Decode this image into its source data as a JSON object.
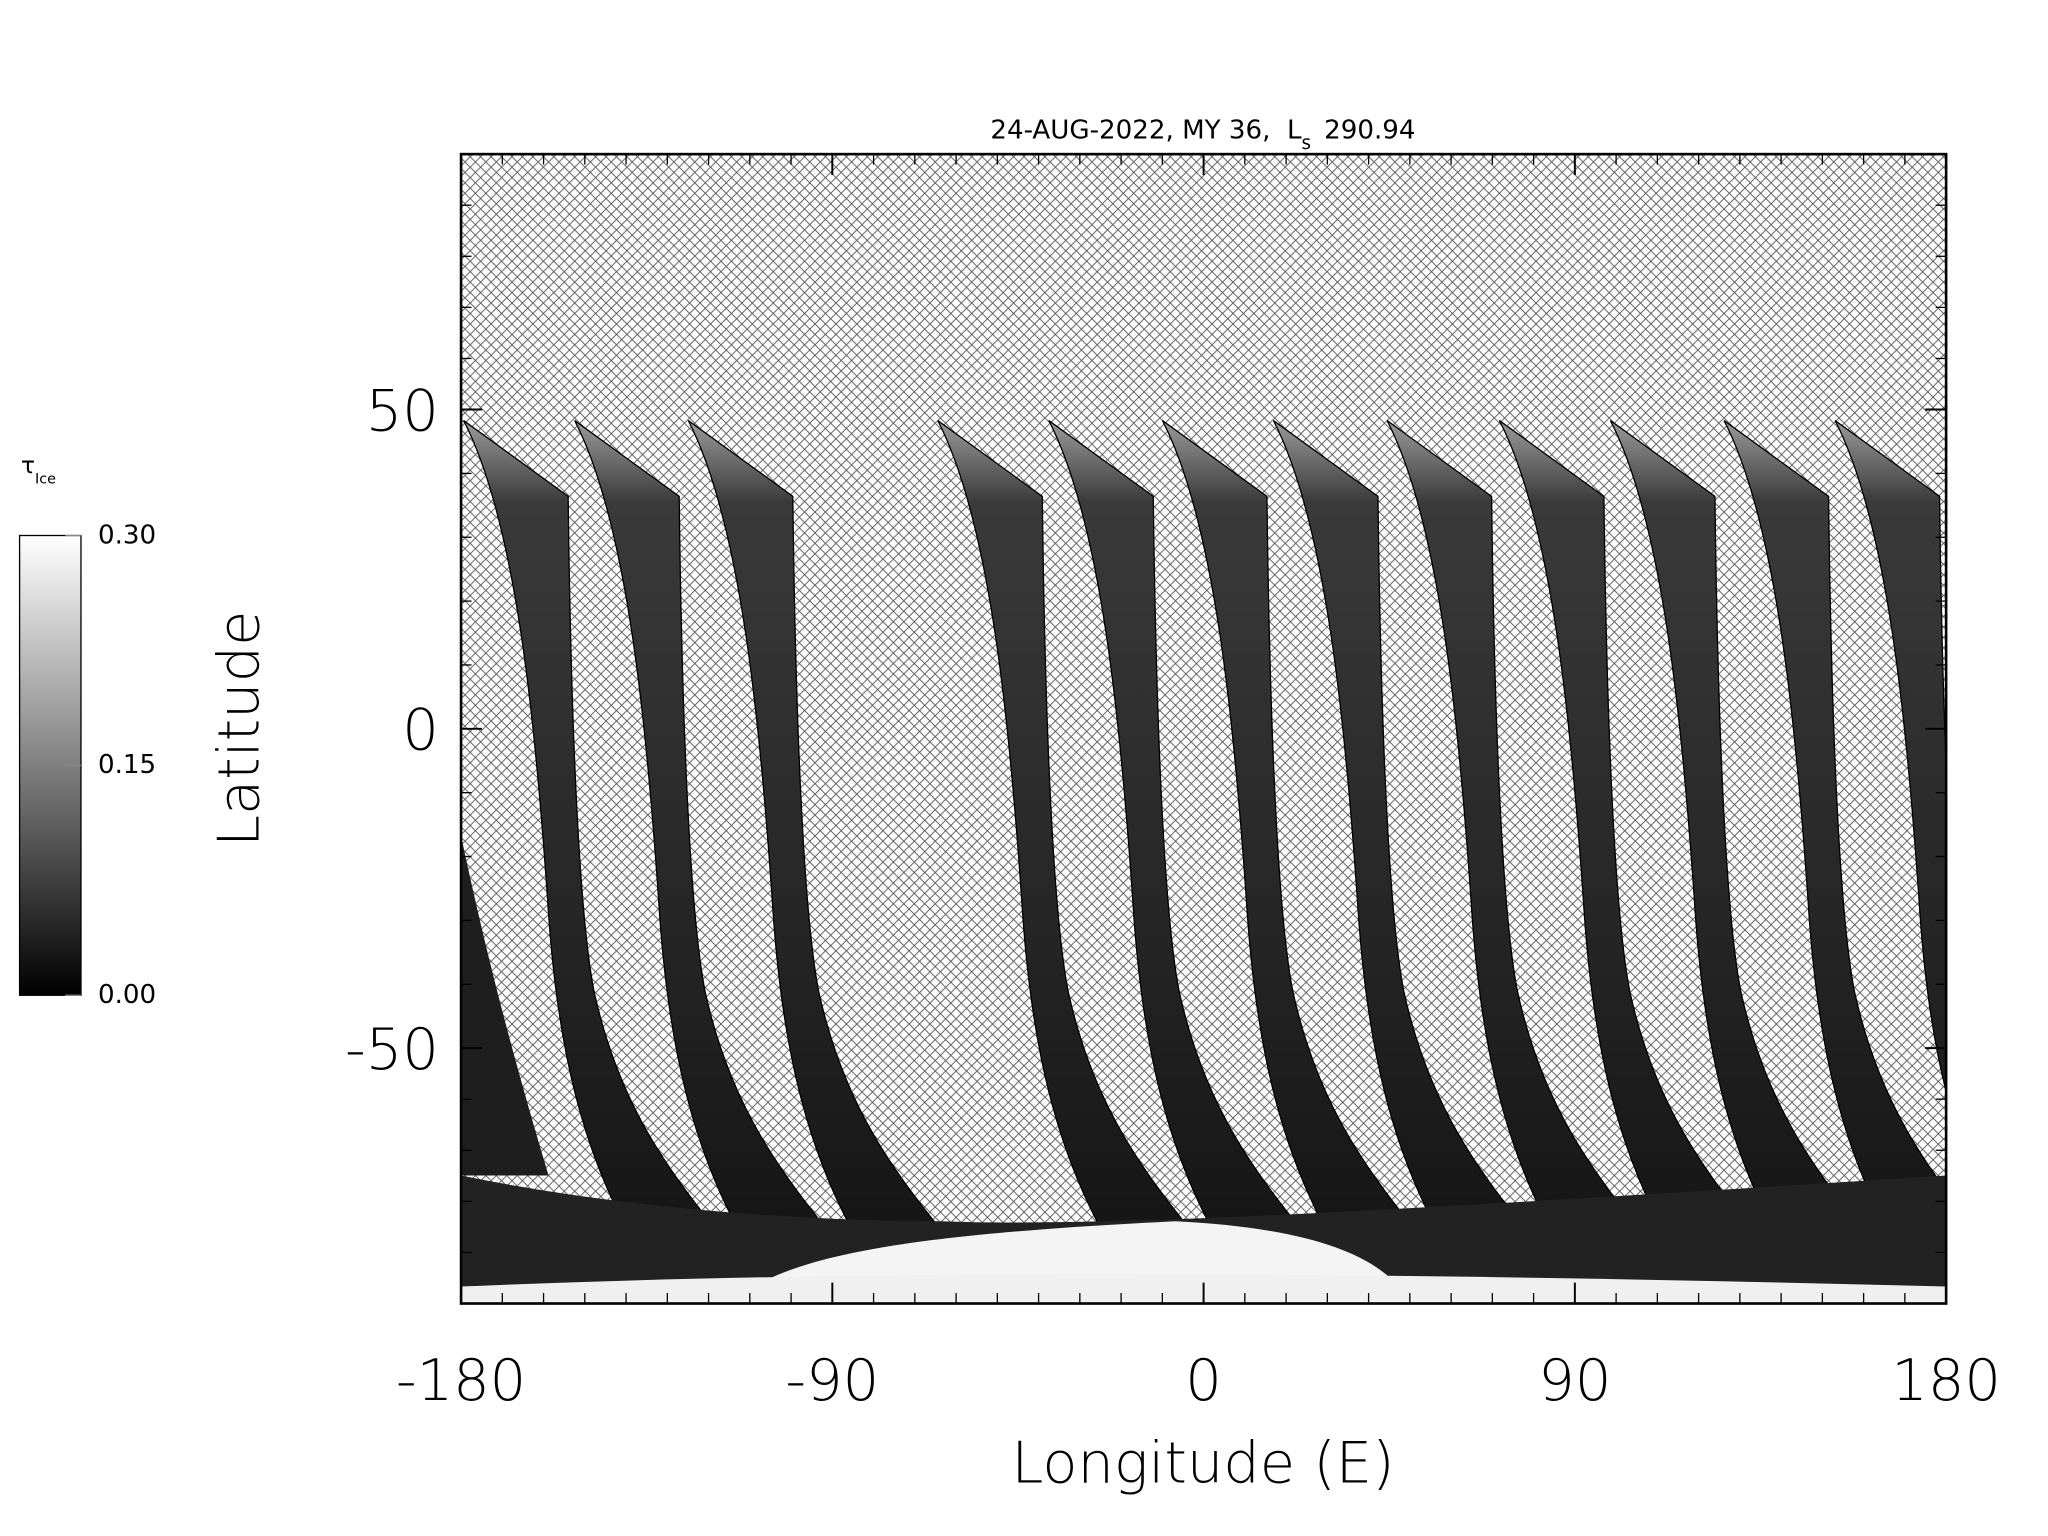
{
  "chart_data": {
    "type": "map",
    "title": "24-AUG-2022, MY 36,  L",
    "title_subscript": "s",
    "title_value": "290.94",
    "xlabel": "Longitude (E)",
    "ylabel": "Latitude",
    "xlim": [
      -180,
      180
    ],
    "ylim": [
      -90,
      90
    ],
    "xticks": [
      -180,
      -90,
      0,
      90,
      180
    ],
    "yticks": [
      -50,
      0,
      50
    ],
    "colorbar": {
      "label": "τ",
      "label_subscript": "Ice",
      "lim": [
        0,
        0.3
      ],
      "ticks": [
        {
          "value": 0,
          "label": "0.00"
        },
        {
          "value": 0.15,
          "label": "0.15"
        },
        {
          "value": 0.3,
          "label": "0.30"
        }
      ]
    }
  }
}
